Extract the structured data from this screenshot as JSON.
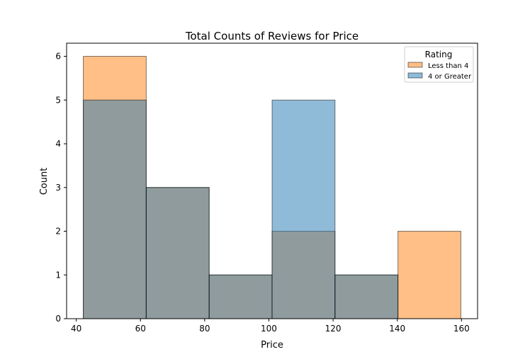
{
  "chart_data": {
    "type": "bar",
    "title": "Total Counts of Reviews for Price",
    "xlabel": "Price",
    "ylabel": "Count",
    "bin_edges": [
      42.2,
      61.8,
      81.4,
      101.0,
      120.6,
      140.2,
      159.8
    ],
    "xlim": [
      37,
      165
    ],
    "ylim": [
      0,
      6.3
    ],
    "xticks": [
      40,
      60,
      80,
      100,
      120,
      140,
      160
    ],
    "yticks": [
      0,
      1,
      2,
      3,
      4,
      5,
      6
    ],
    "grid": false,
    "legend": {
      "title": "Rating",
      "position": "top-right"
    },
    "series": [
      {
        "name": "Less than 4",
        "values": [
          6,
          3,
          1,
          2,
          1,
          2
        ],
        "color": "#ff7f0e"
      },
      {
        "name": "4 or Greater",
        "values": [
          5,
          3,
          1,
          5,
          1,
          0
        ],
        "color": "#1f77b4"
      }
    ]
  }
}
